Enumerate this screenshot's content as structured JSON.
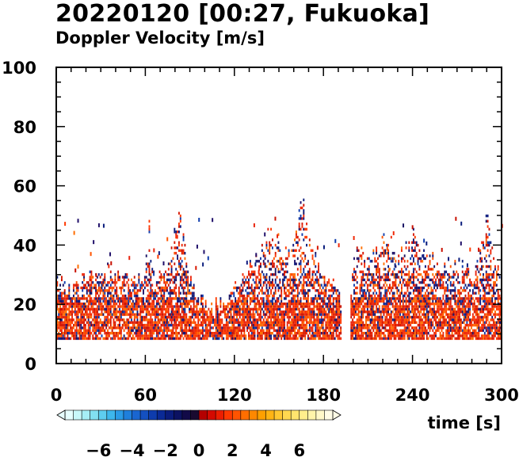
{
  "header": {
    "title": "20220120 [00:27, Fukuoka]",
    "subtitle": "Doppler Velocity [m/s]"
  },
  "chart_data": {
    "type": "heatmap",
    "title": "20220120 [00:27, Fukuoka]",
    "subtitle": "Doppler Velocity [m/s]",
    "xlabel": "time [s]",
    "ylabel": "",
    "xlim": [
      0,
      300
    ],
    "ylim": [
      0,
      100
    ],
    "x_ticks": [
      0,
      60,
      120,
      180,
      240,
      300
    ],
    "y_ticks": [
      0,
      20,
      40,
      60,
      80,
      100
    ],
    "data_bottom": 8,
    "echo_top_profile": [
      {
        "t": 0,
        "top": 28
      },
      {
        "t": 10,
        "top": 24
      },
      {
        "t": 20,
        "top": 30
      },
      {
        "t": 30,
        "top": 32
      },
      {
        "t": 40,
        "top": 30
      },
      {
        "t": 50,
        "top": 28
      },
      {
        "t": 58,
        "top": 30
      },
      {
        "t": 62,
        "top": 47
      },
      {
        "t": 66,
        "top": 30
      },
      {
        "t": 75,
        "top": 33
      },
      {
        "t": 83,
        "top": 52
      },
      {
        "t": 88,
        "top": 32
      },
      {
        "t": 95,
        "top": 22
      },
      {
        "t": 105,
        "top": 18
      },
      {
        "t": 115,
        "top": 22
      },
      {
        "t": 125,
        "top": 30
      },
      {
        "t": 135,
        "top": 35
      },
      {
        "t": 143,
        "top": 45
      },
      {
        "t": 150,
        "top": 40
      },
      {
        "t": 158,
        "top": 38
      },
      {
        "t": 165,
        "top": 55
      },
      {
        "t": 172,
        "top": 40
      },
      {
        "t": 180,
        "top": 30
      },
      {
        "t": 188,
        "top": 28
      },
      {
        "t": 193,
        "top": 18
      },
      {
        "t": 196,
        "top": 0
      },
      {
        "t": 200,
        "top": 40
      },
      {
        "t": 210,
        "top": 35
      },
      {
        "t": 222,
        "top": 43
      },
      {
        "t": 230,
        "top": 35
      },
      {
        "t": 240,
        "top": 45
      },
      {
        "t": 250,
        "top": 35
      },
      {
        "t": 260,
        "top": 33
      },
      {
        "t": 270,
        "top": 32
      },
      {
        "t": 280,
        "top": 30
      },
      {
        "t": 290,
        "top": 50
      },
      {
        "t": 300,
        "top": 25
      }
    ],
    "colorbar": {
      "min": -8,
      "max": 8,
      "ticks": [
        -6,
        -4,
        -2,
        0,
        2,
        4,
        6
      ],
      "tick_labels": [
        "−6",
        "−4",
        "−2",
        "0",
        "2",
        "4",
        "6"
      ],
      "colors": [
        "#e6ffff",
        "#c8f8fa",
        "#a6eef6",
        "#82e0f2",
        "#5ecdef",
        "#3db7ec",
        "#2a9be6",
        "#1f7fdc",
        "#1a66d0",
        "#1450c0",
        "#0e3cad",
        "#0a2a96",
        "#0a1c7c",
        "#0c1262",
        "#120a48",
        "#1a0a30",
        "#b40000",
        "#d40a00",
        "#ec1e00",
        "#ff3a00",
        "#ff5400",
        "#ff6e00",
        "#ff8800",
        "#ffa000",
        "#ffb414",
        "#ffc832",
        "#ffd850",
        "#ffe46e",
        "#ffee8c",
        "#fff4aa",
        "#fff8c8",
        "#fffce6"
      ]
    },
    "dominant_colors": {
      "positive": "#e8250f",
      "negative": "#101a80"
    }
  }
}
